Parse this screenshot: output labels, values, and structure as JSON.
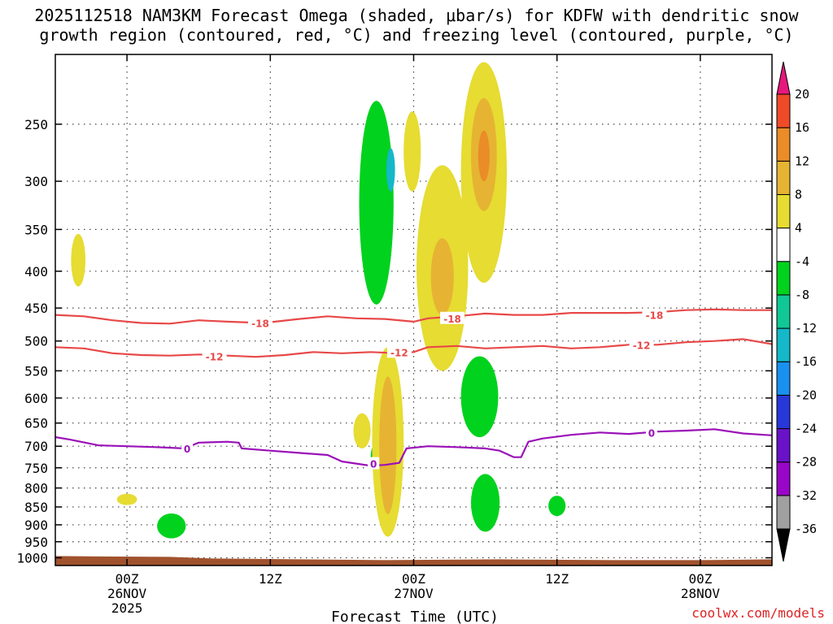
{
  "title_line1": "2025112518 NAM3KM Forecast Omega (shaded, μbar/s) for KDFW with dendritic snow",
  "title_line2": "growth region (contoured, red, °C) and freezing level (contoured, purple, °C)",
  "credit": "coolwx.com/models",
  "chart_data": {
    "type": "heatmap",
    "title": "2025112518 NAM3KM Forecast Omega (shaded, μbar/s) for KDFW with dendritic snow growth region (contoured, red, °C) and freezing level (contoured, purple, °C)",
    "xlabel": "Forecast Time (UTC)",
    "ylabel": "",
    "x_range_hours": [
      -5,
      45
    ],
    "y_range_hPa": [
      1025,
      200
    ],
    "y_axis": "log-pressure",
    "y_ticks": [
      250,
      300,
      350,
      400,
      450,
      500,
      550,
      600,
      650,
      700,
      750,
      800,
      850,
      900,
      950,
      1000
    ],
    "x_ticks": [
      {
        "hour": 0,
        "label": "00Z",
        "sub1": "26NOV",
        "sub2": "2025"
      },
      {
        "hour": 10,
        "label": "12Z",
        "sub1": "",
        "sub2": ""
      },
      {
        "hour": 20,
        "label": "00Z",
        "sub1": "27NOV",
        "sub2": ""
      },
      {
        "hour": 30,
        "label": "12Z",
        "sub1": "",
        "sub2": ""
      },
      {
        "hour": 40,
        "label": "00Z",
        "sub1": "28NOV",
        "sub2": ""
      }
    ],
    "grid": true,
    "colorbar": {
      "levels": [
        -36,
        -32,
        -28,
        -24,
        -20,
        -16,
        -12,
        -8,
        -4,
        4,
        8,
        12,
        16,
        20
      ],
      "bins": [
        {
          "color": "#a0a0a0"
        },
        {
          "color": "#9a06c8"
        },
        {
          "color": "#6a12c8"
        },
        {
          "color": "#2838d8"
        },
        {
          "color": "#1a90f0"
        },
        {
          "color": "#14b8c8"
        },
        {
          "color": "#10c896"
        },
        {
          "color": "#00d21e"
        },
        {
          "color": "#ffffff"
        },
        {
          "color": "#e6dc32"
        },
        {
          "color": "#e6b432"
        },
        {
          "color": "#ea8c28"
        },
        {
          "color": "#f04b28"
        }
      ],
      "below_color": "#000000",
      "above_color": "#e6187c"
    },
    "omega_areas": [
      {
        "x": -3.4,
        "p1": 355,
        "p2": 420,
        "w": 0.5,
        "color": "#e6dc32"
      },
      {
        "x": 0.0,
        "p1": 815,
        "p2": 845,
        "w": 0.7,
        "color": "#e6dc32"
      },
      {
        "x": 3.1,
        "p1": 868,
        "p2": 940,
        "w": 1.0,
        "color": "#00d21e"
      },
      {
        "x": 17.4,
        "p1": 232,
        "p2": 445,
        "w": 1.2,
        "color": "#00d21e"
      },
      {
        "x": 18.4,
        "p1": 270,
        "p2": 310,
        "w": 0.3,
        "color": "#14b8c8"
      },
      {
        "x": 19.9,
        "p1": 240,
        "p2": 310,
        "w": 0.6,
        "color": "#e6dc32"
      },
      {
        "x": 22.0,
        "p1": 285,
        "p2": 550,
        "w": 1.8,
        "color": "#e6dc32"
      },
      {
        "x": 22.0,
        "p1": 360,
        "p2": 460,
        "w": 0.8,
        "color": "#e6b432"
      },
      {
        "x": 24.9,
        "p1": 205,
        "p2": 415,
        "w": 1.6,
        "color": "#e6dc32"
      },
      {
        "x": 24.9,
        "p1": 230,
        "p2": 330,
        "w": 0.9,
        "color": "#e6b432"
      },
      {
        "x": 24.9,
        "p1": 255,
        "p2": 300,
        "w": 0.4,
        "color": "#ea8c28"
      },
      {
        "x": 16.4,
        "p1": 630,
        "p2": 705,
        "w": 0.6,
        "color": "#e6dc32"
      },
      {
        "x": 17.2,
        "p1": 700,
        "p2": 755,
        "w": 0.2,
        "color": "#00d21e"
      },
      {
        "x": 18.2,
        "p1": 510,
        "p2": 935,
        "w": 1.1,
        "color": "#e6dc32"
      },
      {
        "x": 18.2,
        "p1": 560,
        "p2": 870,
        "w": 0.6,
        "color": "#e6b432"
      },
      {
        "x": 24.6,
        "p1": 525,
        "p2": 680,
        "w": 1.3,
        "color": "#00d21e"
      },
      {
        "x": 25.0,
        "p1": 765,
        "p2": 920,
        "w": 1.0,
        "color": "#00d21e"
      },
      {
        "x": 30.0,
        "p1": 820,
        "p2": 875,
        "w": 0.6,
        "color": "#00d21e"
      }
    ],
    "contours": [
      {
        "name": "dgz-minus-18",
        "color": "#e84848",
        "label": "-18",
        "label_points": [
          {
            "x": 9.3,
            "p": 472
          },
          {
            "x": 22.7,
            "p": 465
          },
          {
            "x": 36.8,
            "p": 460
          }
        ],
        "points": [
          [
            -5,
            460
          ],
          [
            -3,
            462
          ],
          [
            -1,
            468
          ],
          [
            1,
            472
          ],
          [
            3,
            473
          ],
          [
            5,
            468
          ],
          [
            7,
            470
          ],
          [
            9.5,
            472
          ],
          [
            12,
            466
          ],
          [
            14,
            462
          ],
          [
            16,
            465
          ],
          [
            18,
            466
          ],
          [
            20,
            470
          ],
          [
            21,
            465
          ],
          [
            23,
            462
          ],
          [
            25,
            458
          ],
          [
            27,
            460
          ],
          [
            29,
            460
          ],
          [
            31,
            457
          ],
          [
            33,
            457
          ],
          [
            35,
            457
          ],
          [
            37,
            456
          ],
          [
            39,
            453
          ],
          [
            41,
            452
          ],
          [
            43,
            453
          ],
          [
            45,
            453
          ]
        ]
      },
      {
        "name": "dgz-minus-12",
        "color": "#e84848",
        "label": "-12",
        "label_points": [
          {
            "x": 6.1,
            "p": 525
          },
          {
            "x": 19.0,
            "p": 518
          },
          {
            "x": 35.9,
            "p": 506
          }
        ],
        "points": [
          [
            -5,
            510
          ],
          [
            -3,
            512
          ],
          [
            -1,
            520
          ],
          [
            1,
            523
          ],
          [
            3,
            524
          ],
          [
            5,
            522
          ],
          [
            7,
            524
          ],
          [
            9,
            526
          ],
          [
            11,
            523
          ],
          [
            13,
            518
          ],
          [
            15,
            520
          ],
          [
            17,
            518
          ],
          [
            19,
            520
          ],
          [
            20,
            518
          ],
          [
            21,
            510
          ],
          [
            23,
            508
          ],
          [
            25,
            512
          ],
          [
            27,
            510
          ],
          [
            29,
            508
          ],
          [
            31,
            512
          ],
          [
            33,
            510
          ],
          [
            35,
            506
          ],
          [
            37,
            506
          ],
          [
            39,
            502
          ],
          [
            41,
            500
          ],
          [
            43,
            497
          ],
          [
            45,
            505
          ]
        ]
      },
      {
        "name": "freezing-level",
        "color": "#9a10b8",
        "label": "0",
        "label_points": [
          {
            "x": 4.2,
            "p": 705
          },
          {
            "x": 17.2,
            "p": 740
          },
          {
            "x": 36.6,
            "p": 670
          }
        ],
        "points": [
          [
            -5,
            680
          ],
          [
            -4,
            685
          ],
          [
            -2,
            698
          ],
          [
            0,
            700
          ],
          [
            2,
            702
          ],
          [
            4,
            705
          ],
          [
            5,
            692
          ],
          [
            7,
            690
          ],
          [
            7.8,
            692
          ],
          [
            8,
            705
          ],
          [
            10,
            710
          ],
          [
            12,
            715
          ],
          [
            14,
            720
          ],
          [
            15,
            735
          ],
          [
            16,
            740
          ],
          [
            17,
            745
          ],
          [
            18,
            743
          ],
          [
            19,
            738
          ],
          [
            19.5,
            705
          ],
          [
            21,
            700
          ],
          [
            23,
            702
          ],
          [
            25,
            705
          ],
          [
            26,
            710
          ],
          [
            27,
            725
          ],
          [
            27.5,
            725
          ],
          [
            28,
            690
          ],
          [
            29,
            683
          ],
          [
            31,
            675
          ],
          [
            33,
            670
          ],
          [
            35,
            673
          ],
          [
            37,
            668
          ],
          [
            39,
            666
          ],
          [
            41,
            663
          ],
          [
            43,
            672
          ],
          [
            45,
            676
          ]
        ]
      }
    ],
    "terrain": {
      "color": "#a0522d",
      "top_hPa": 1005
    }
  }
}
